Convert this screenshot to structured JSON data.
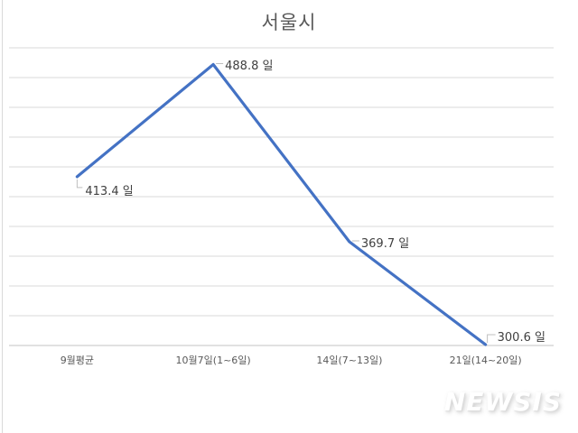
{
  "title": "서울시",
  "chart_data": {
    "type": "line",
    "title": "서울시",
    "categories": [
      "9월평균",
      "10월7일(1~6일)",
      "14일(7~13일)",
      "21일(14~20일)"
    ],
    "values": [
      413.4,
      488.8,
      369.7,
      300.6
    ],
    "data_labels": [
      "413.4 일",
      "488.8 일",
      "369.7 일",
      "300.6 일"
    ],
    "label_placements": [
      "below",
      "right",
      "right",
      "above"
    ],
    "unit": "일",
    "xlabel": "",
    "ylabel": "",
    "ylim": [
      300,
      500
    ],
    "grid_step": 20,
    "grid": "on",
    "legend": "none",
    "line_color": "#4472C4"
  },
  "watermark": {
    "text": "NEWSIS"
  },
  "colors": {
    "line": "#4472C4",
    "grid": "#d9d9d9",
    "axis": "#c3c3c3",
    "connector": "#bfbfbf",
    "title_text": "#595959",
    "label_text": "#404040",
    "tick_text": "#595959"
  }
}
